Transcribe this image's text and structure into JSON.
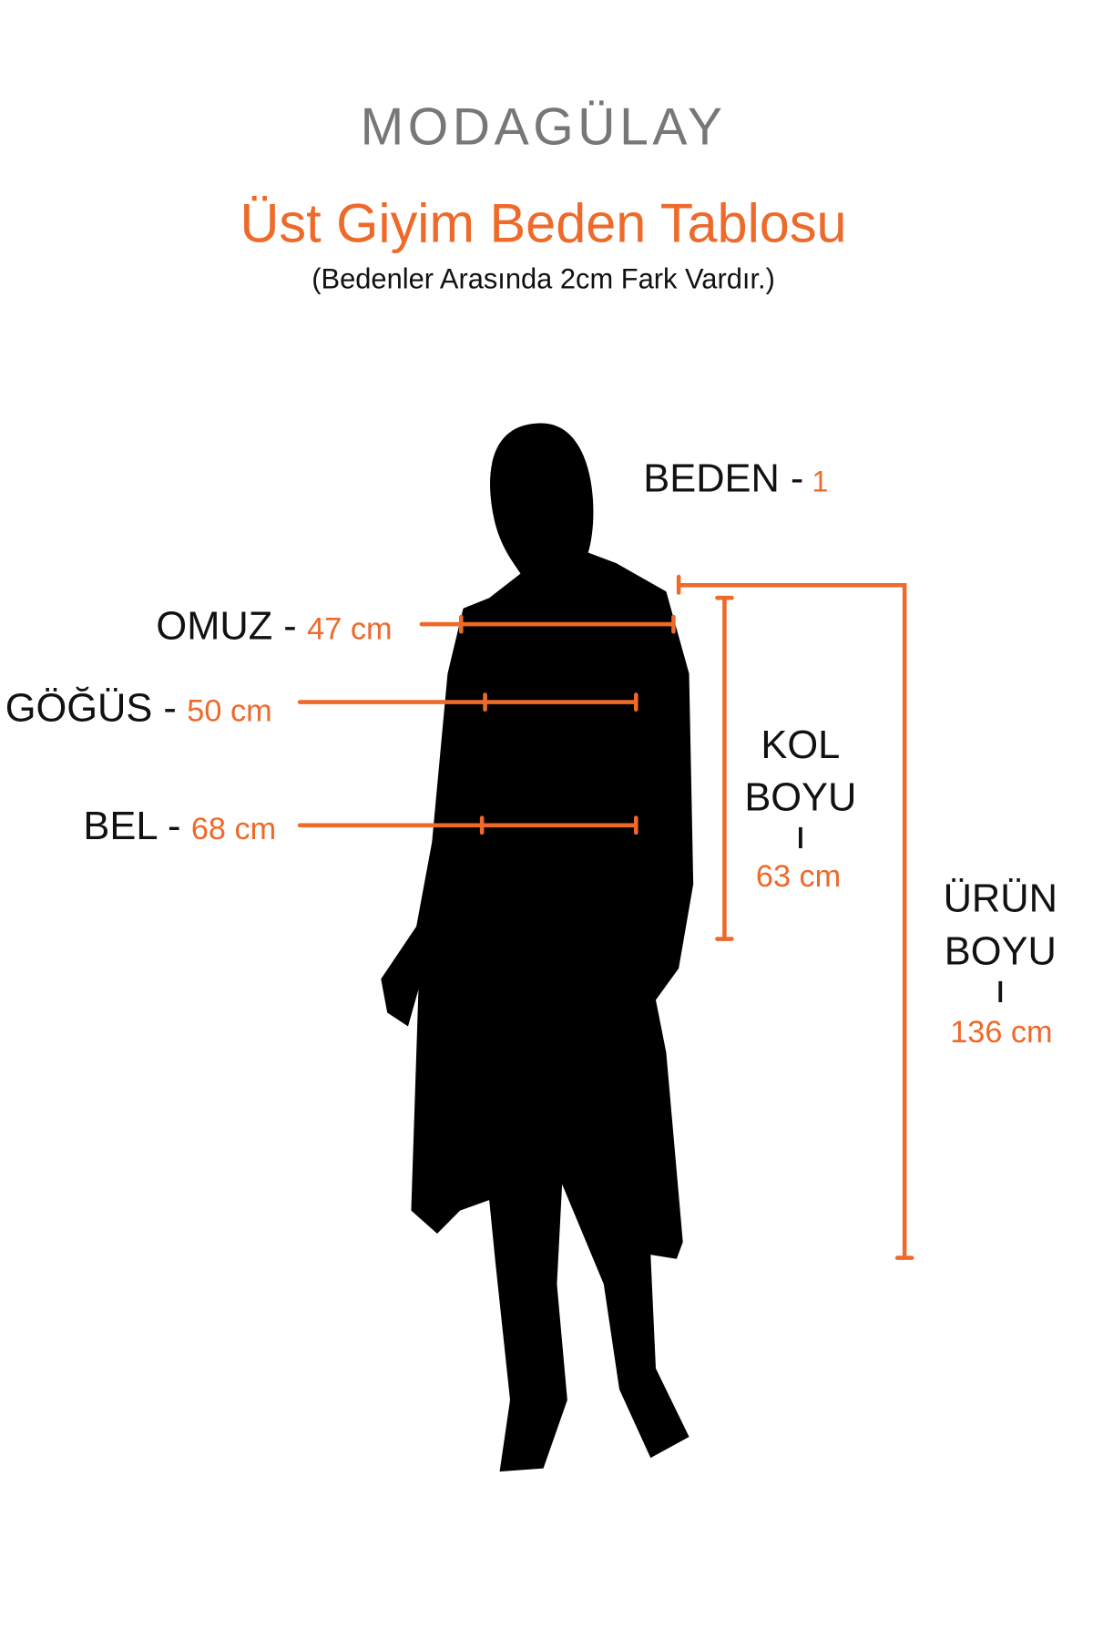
{
  "brand": {
    "logo_text": "MODAGÜLAY",
    "logo_color": "#777777"
  },
  "header": {
    "title": "Üst Giyim Beden Tablosu",
    "subtitle": "(Bedenler Arasında 2cm Fark Vardır.)"
  },
  "colors": {
    "accent": "#ee6a2a",
    "text": "#111111",
    "silhouette": "#000000"
  },
  "size": {
    "label": "BEDEN -",
    "value": "1"
  },
  "measurements": {
    "shoulder": {
      "label": "OMUZ -",
      "value": "47 cm"
    },
    "chest": {
      "label": "GÖĞÜS -",
      "value": "50 cm"
    },
    "waist": {
      "label": "BEL -",
      "value": "68 cm"
    },
    "sleeve": {
      "label_line1": "KOL",
      "label_line2": "BOYU",
      "separator": "ı",
      "value": "63 cm"
    },
    "length": {
      "label_line1": "ÜRÜN",
      "label_line2": "BOYU",
      "separator": "ı",
      "value": "136 cm"
    }
  }
}
